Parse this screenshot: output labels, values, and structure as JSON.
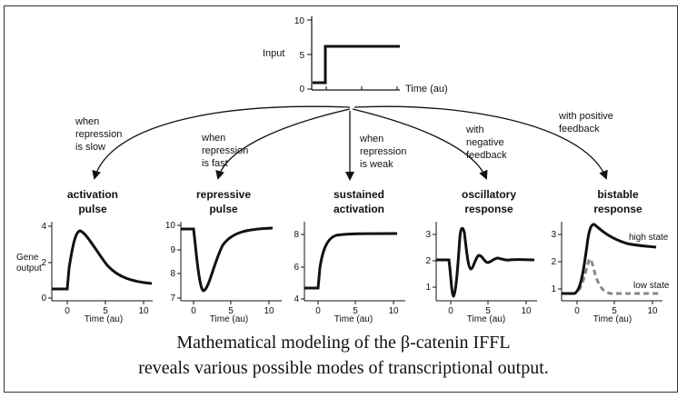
{
  "input_panel": {
    "label": "Input",
    "y_ticks": [
      "10",
      "5",
      "0"
    ],
    "x_label": "Time (au)"
  },
  "branches": [
    {
      "text": [
        "when",
        "repression",
        "is slow"
      ]
    },
    {
      "text": [
        "when",
        "repression",
        "is fast"
      ]
    },
    {
      "text": [
        "when",
        "repression",
        "is weak"
      ]
    },
    {
      "text": [
        "with",
        "negative",
        "feedback"
      ]
    },
    {
      "text": [
        "with positive",
        "feedback"
      ]
    }
  ],
  "panels": [
    {
      "title": [
        "activation",
        "pulse"
      ],
      "y_label": [
        "Gene",
        "output"
      ],
      "y_ticks": [
        "4",
        "2",
        "0"
      ],
      "x_ticks": [
        "0",
        "5",
        "10"
      ],
      "x_label": "Time (au)"
    },
    {
      "title": [
        "repressive",
        "pulse"
      ],
      "y_ticks": [
        "10",
        "9",
        "8",
        "7"
      ],
      "x_ticks": [
        "0",
        "5",
        "10"
      ],
      "x_label": "Time (au)"
    },
    {
      "title": [
        "sustained",
        "activation"
      ],
      "y_ticks": [
        "8",
        "6",
        "4"
      ],
      "x_ticks": [
        "0",
        "5",
        "10"
      ],
      "x_label": "Time (au)"
    },
    {
      "title": [
        "oscillatory",
        "response"
      ],
      "y_ticks": [
        "3",
        "2",
        "1"
      ],
      "x_ticks": [
        "0",
        "5",
        "10"
      ],
      "x_label": "Time (au)"
    },
    {
      "title": [
        "bistable",
        "response"
      ],
      "y_ticks": [
        "3",
        "2",
        "1"
      ],
      "x_ticks": [
        "0",
        "5",
        "10"
      ],
      "x_label": "Time (au)",
      "curve_labels": [
        "high state",
        "low state"
      ]
    }
  ],
  "caption": {
    "line1": "Mathematical modeling of the β-catenin IFFL",
    "line2": "reveals various possible modes of  transcriptional output."
  }
}
